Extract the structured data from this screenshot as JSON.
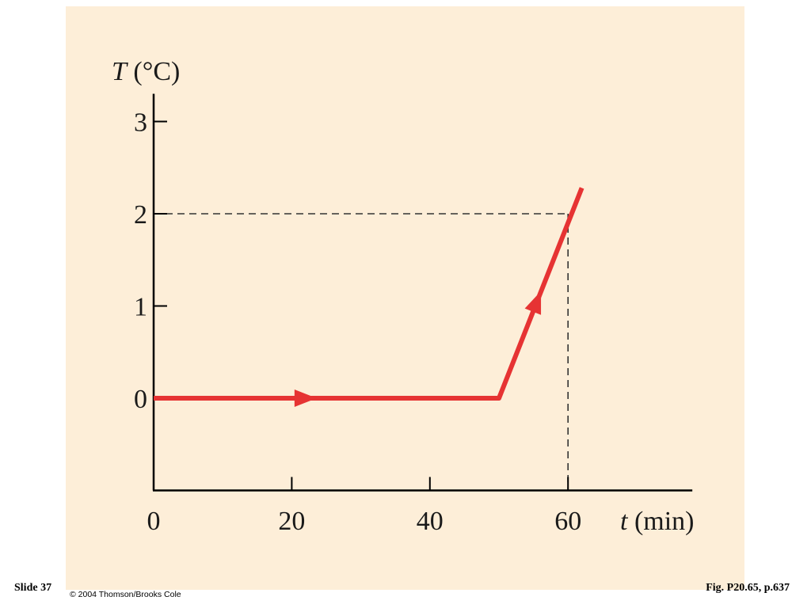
{
  "slide": {
    "label": "Slide 37"
  },
  "figure": {
    "reference": "Fig. P20.65, p.637",
    "copyright": "© 2004 Thomson/Brooks Cole"
  },
  "colors": {
    "panel_background": "#fdeed8",
    "line": "#e63333",
    "axis": "#000000",
    "text": "#1a1a1a"
  },
  "chart_data": {
    "type": "line",
    "xlabel_var": "t",
    "xlabel_unit": " (min)",
    "ylabel_var": "T",
    "ylabel_unit": " (°C)",
    "x_ticks": [
      "0",
      "20",
      "40",
      "60"
    ],
    "y_ticks": [
      "0",
      "1",
      "2",
      "3"
    ],
    "xlim": [
      0,
      78
    ],
    "ylim": [
      -1,
      3.3
    ],
    "series": [
      {
        "x": [
          0,
          50,
          62
        ],
        "y": [
          0,
          0,
          2.28
        ]
      }
    ],
    "annotations": [
      {
        "type": "dashed_guide",
        "x": 60,
        "y": 2
      }
    ],
    "arrows": [
      {
        "x": 22,
        "y": 0
      },
      {
        "x": 55.5,
        "y": 1.05
      }
    ],
    "grid": false
  }
}
